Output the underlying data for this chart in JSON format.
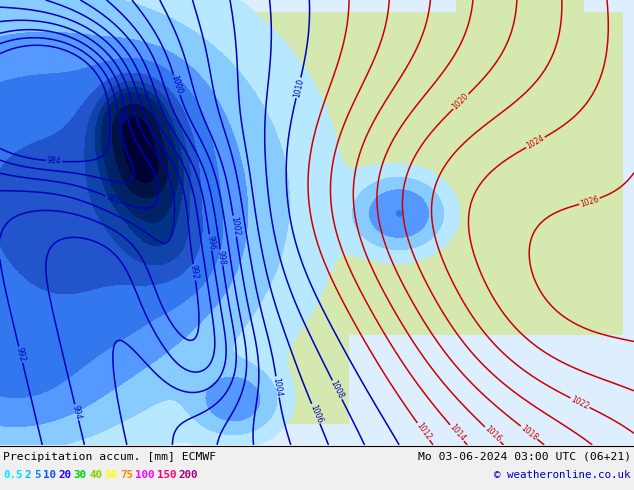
{
  "title_left": "Precipitation accum. [mm] ECMWF",
  "title_right": "Mo 03-06-2024 03:00 UTC (06+21)",
  "copyright": "© weatheronline.co.uk",
  "legend_values": [
    "0.5",
    "2",
    "5",
    "10",
    "20",
    "30",
    "40",
    "50",
    "75",
    "100",
    "150",
    "200"
  ],
  "legend_colors": [
    "#00e5ff",
    "#00bbff",
    "#0088ff",
    "#0055ff",
    "#2200ff",
    "#00cc00",
    "#88cc00",
    "#ffff00",
    "#ff8800",
    "#ff00ff",
    "#ff0077",
    "#aa0077"
  ],
  "bg_color": "#ffffff",
  "ocean_color": "#ddeeff",
  "land_color": "#d4e8b0",
  "contour_color_blue": "#0000bb",
  "contour_color_red": "#cc0000",
  "figsize": [
    6.34,
    4.9
  ],
  "dpi": 100,
  "precip_levels": [
    0.5,
    2,
    5,
    10,
    20,
    30,
    40,
    50,
    75,
    100,
    150,
    200,
    500
  ],
  "precip_colors": [
    "#b8e8ff",
    "#88ccff",
    "#5599ff",
    "#3377ee",
    "#2255cc",
    "#1144aa",
    "#003388",
    "#002266",
    "#001144",
    "#000033",
    "#110022",
    "#220011"
  ],
  "blue_levels": [
    984,
    986,
    988,
    990,
    992,
    994,
    996,
    998,
    1000,
    1002,
    1004,
    1006,
    1008,
    1010
  ],
  "red_levels": [
    1012,
    1014,
    1016,
    1018,
    1020,
    1022,
    1024,
    1026,
    1028,
    1030,
    1032
  ]
}
